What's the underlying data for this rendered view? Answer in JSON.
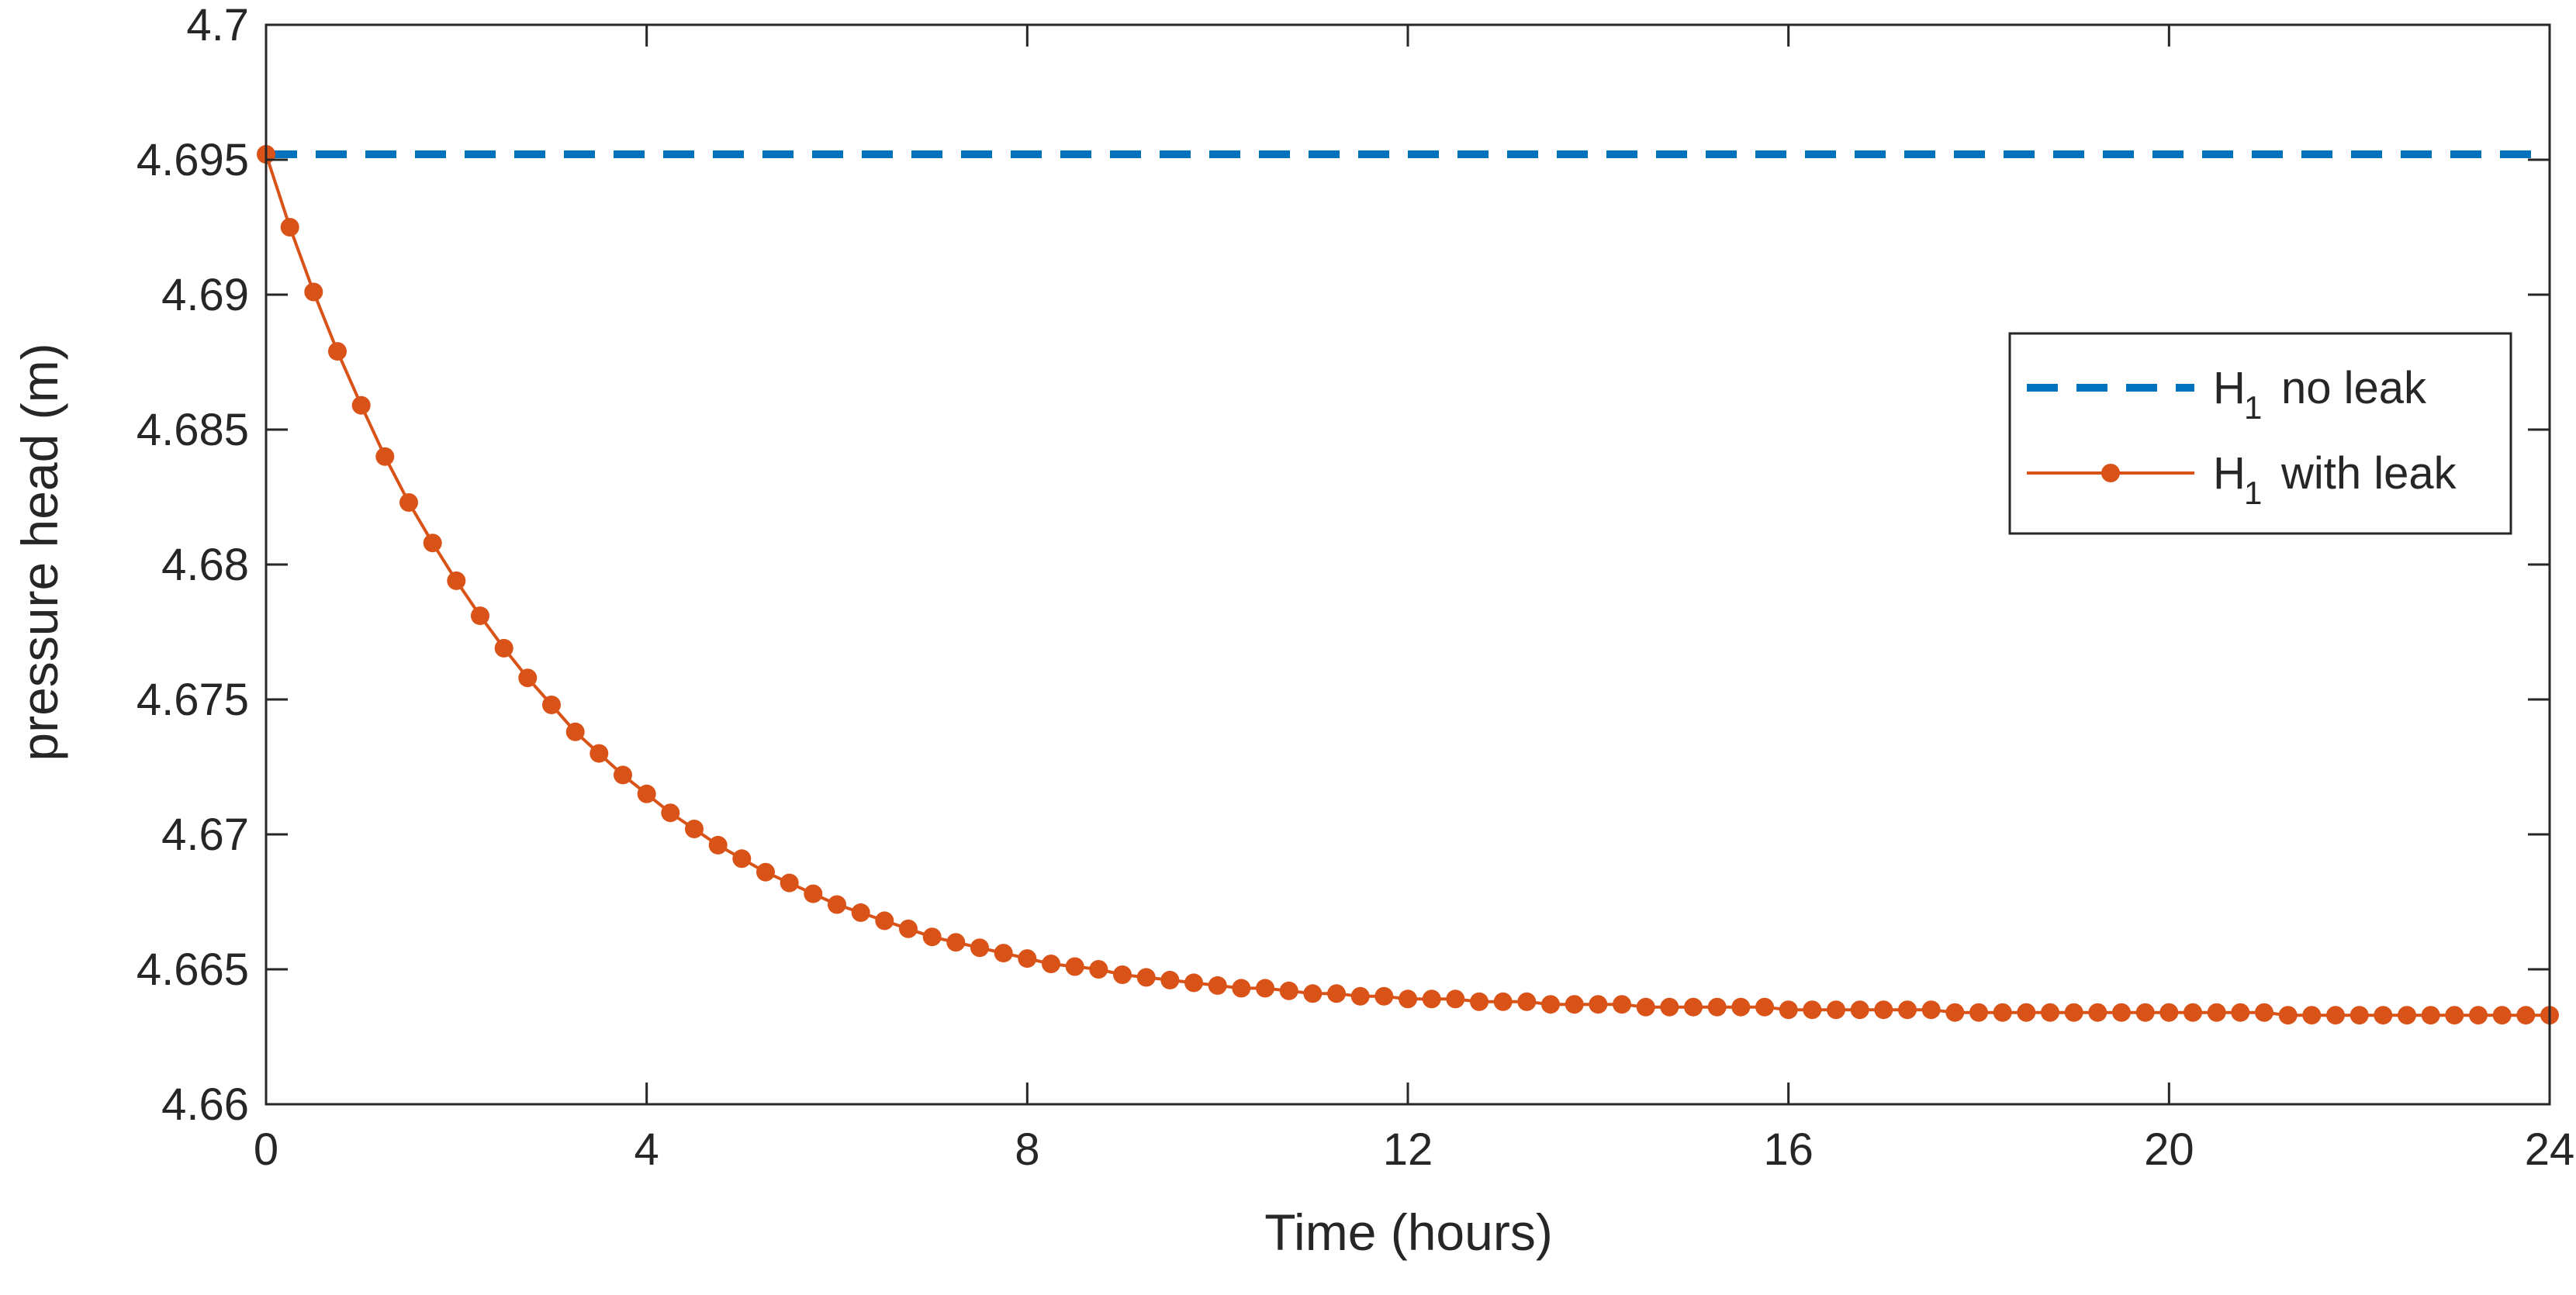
{
  "chart_data": {
    "type": "line",
    "xlabel": "Time (hours)",
    "ylabel": "pressure head (m)",
    "xlim": [
      0,
      24
    ],
    "ylim": [
      4.66,
      4.7
    ],
    "xticks": [
      0,
      4,
      8,
      12,
      16,
      20,
      24
    ],
    "yticks": [
      4.66,
      4.665,
      4.67,
      4.675,
      4.68,
      4.685,
      4.69,
      4.695,
      4.7
    ],
    "xtick_labels": [
      "0",
      "4",
      "8",
      "12",
      "16",
      "20",
      "24"
    ],
    "ytick_labels": [
      "4.66",
      "4.665",
      "4.67",
      "4.675",
      "4.68",
      "4.685",
      "4.69",
      "4.695",
      "4.7"
    ],
    "grid": false,
    "box": true,
    "legend_position": "center-right",
    "series": [
      {
        "legend_base": "H",
        "legend_sub": "1",
        "legend_text": "no leak",
        "color": "#0072BD",
        "style": "dashed",
        "marker": "none",
        "x": [
          0,
          24
        ],
        "y": [
          4.6952,
          4.6952
        ]
      },
      {
        "legend_base": "H",
        "legend_sub": "1",
        "legend_text": "with leak",
        "color": "#D95319",
        "style": "solid",
        "marker": "circle",
        "x": [
          0,
          0.25,
          0.5,
          0.75,
          1,
          1.25,
          1.5,
          1.75,
          2,
          2.25,
          2.5,
          2.75,
          3,
          3.25,
          3.5,
          3.75,
          4,
          4.25,
          4.5,
          4.75,
          5,
          5.25,
          5.5,
          5.75,
          6,
          6.25,
          6.5,
          6.75,
          7,
          7.25,
          7.5,
          7.75,
          8,
          8.25,
          8.5,
          8.75,
          9,
          9.25,
          9.5,
          9.75,
          10,
          10.25,
          10.5,
          10.75,
          11,
          11.25,
          11.5,
          11.75,
          12,
          12.25,
          12.5,
          12.75,
          13,
          13.25,
          13.5,
          13.75,
          14,
          14.25,
          14.5,
          14.75,
          15,
          15.25,
          15.5,
          15.75,
          16,
          16.25,
          16.5,
          16.75,
          17,
          17.25,
          17.5,
          17.75,
          18,
          18.25,
          18.5,
          18.75,
          19,
          19.25,
          19.5,
          19.75,
          20,
          20.25,
          20.5,
          20.75,
          21,
          21.25,
          21.5,
          21.75,
          22,
          22.25,
          22.5,
          22.75,
          23,
          23.25,
          23.5,
          23.75,
          24
        ],
        "y": [
          4.6952,
          4.6925,
          4.6901,
          4.6879,
          4.6859,
          4.684,
          4.6823,
          4.6808,
          4.6794,
          4.6781,
          4.6769,
          4.6758,
          4.6748,
          4.6738,
          4.673,
          4.6722,
          4.6715,
          4.6708,
          4.6702,
          4.6696,
          4.6691,
          4.6686,
          4.6682,
          4.6678,
          4.6674,
          4.6671,
          4.6668,
          4.6665,
          4.6662,
          4.666,
          4.6658,
          4.6656,
          4.6654,
          4.6652,
          4.6651,
          4.665,
          4.6648,
          4.6647,
          4.6646,
          4.6645,
          4.6644,
          4.6643,
          4.6643,
          4.6642,
          4.6641,
          4.6641,
          4.664,
          4.664,
          4.6639,
          4.6639,
          4.6639,
          4.6638,
          4.6638,
          4.6638,
          4.6637,
          4.6637,
          4.6637,
          4.6637,
          4.6636,
          4.6636,
          4.6636,
          4.6636,
          4.6636,
          4.6636,
          4.6635,
          4.6635,
          4.6635,
          4.6635,
          4.6635,
          4.6635,
          4.6635,
          4.6634,
          4.6634,
          4.6634,
          4.6634,
          4.6634,
          4.6634,
          4.6634,
          4.6634,
          4.6634,
          4.6634,
          4.6634,
          4.6634,
          4.6634,
          4.6634,
          4.6633,
          4.6633,
          4.6633,
          4.6633,
          4.6633,
          4.6633,
          4.6633,
          4.6633,
          4.6633,
          4.6633,
          4.6633,
          4.6633
        ]
      }
    ]
  }
}
